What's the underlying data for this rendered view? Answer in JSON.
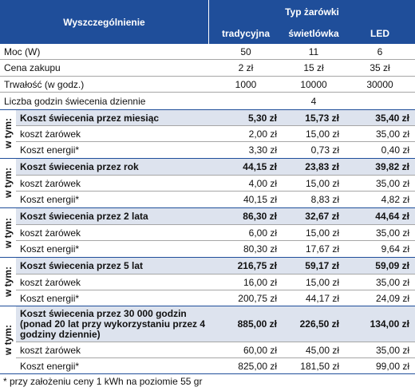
{
  "header": {
    "row_label": "Wyszczególnienie",
    "group_label": "Typ żarówki",
    "columns": [
      "tradycyjna",
      "świetlówka",
      "LED"
    ]
  },
  "simple_rows": [
    {
      "label": "Moc (W)",
      "values": [
        "50",
        "11",
        "6"
      ]
    },
    {
      "label": "Cena zakupu",
      "values": [
        "2 zł",
        "15 zł",
        "35 zł"
      ]
    },
    {
      "label": "Trwałość (w godz.)",
      "values": [
        "1000",
        "10000",
        "30000"
      ]
    },
    {
      "label": "Liczba godzin świecenia dziennie",
      "value": "4"
    }
  ],
  "side_label": "w tym:",
  "groups": [
    {
      "title": "Koszt świecenia przez miesiąc",
      "values": [
        "5,30 zł",
        "15,73 zł",
        "35,40 zł"
      ],
      "sub": [
        {
          "label": "koszt żarówek",
          "values": [
            "2,00 zł",
            "15,00 zł",
            "35,00 zł"
          ]
        },
        {
          "label": "Koszt energii*",
          "values": [
            "3,30 zł",
            "0,73 zł",
            "0,40 zł"
          ]
        }
      ]
    },
    {
      "title": "Koszt świecenia przez rok",
      "values": [
        "44,15 zł",
        "23,83 zł",
        "39,82 zł"
      ],
      "sub": [
        {
          "label": "koszt żarówek",
          "values": [
            "4,00 zł",
            "15,00 zł",
            "35,00 zł"
          ]
        },
        {
          "label": "Koszt energii*",
          "values": [
            "40,15 zł",
            "8,83 zł",
            "4,82 zł"
          ]
        }
      ]
    },
    {
      "title": "Koszt świecenia przez 2 lata",
      "values": [
        "86,30 zł",
        "32,67 zł",
        "44,64 zł"
      ],
      "sub": [
        {
          "label": "koszt żarówek",
          "values": [
            "6,00 zł",
            "15,00 zł",
            "35,00 zł"
          ]
        },
        {
          "label": "Koszt energii*",
          "values": [
            "80,30 zł",
            "17,67 zł",
            "9,64 zł"
          ]
        }
      ]
    },
    {
      "title": "Koszt świecenia przez 5 lat",
      "values": [
        "216,75 zł",
        "59,17 zł",
        "59,09 zł"
      ],
      "sub": [
        {
          "label": "koszt żarówek",
          "values": [
            "16,00 zł",
            "15,00 zł",
            "35,00 zł"
          ]
        },
        {
          "label": "Koszt energii*",
          "values": [
            "200,75 zł",
            "44,17 zł",
            "24,09 zł"
          ]
        }
      ]
    },
    {
      "title": "Koszt świecenia przez 30 000 godzin (ponad 20 lat przy wykorzystaniu przez 4 godziny  dziennie)",
      "values": [
        "885,00 zł",
        "226,50 zł",
        "134,00 zł"
      ],
      "sub": [
        {
          "label": "koszt żarówek",
          "values": [
            "60,00 zł",
            "45,00 zł",
            "35,00 zł"
          ]
        },
        {
          "label": "Koszt energii*",
          "values": [
            "825,00 zł",
            "181,50 zł",
            "99,00 zł"
          ]
        }
      ]
    }
  ],
  "footnote": "* przy założeniu ceny 1 kWh na poziomie 55 gr",
  "colors": {
    "header": "#1f4e9a",
    "shade": "#dde3ee"
  }
}
